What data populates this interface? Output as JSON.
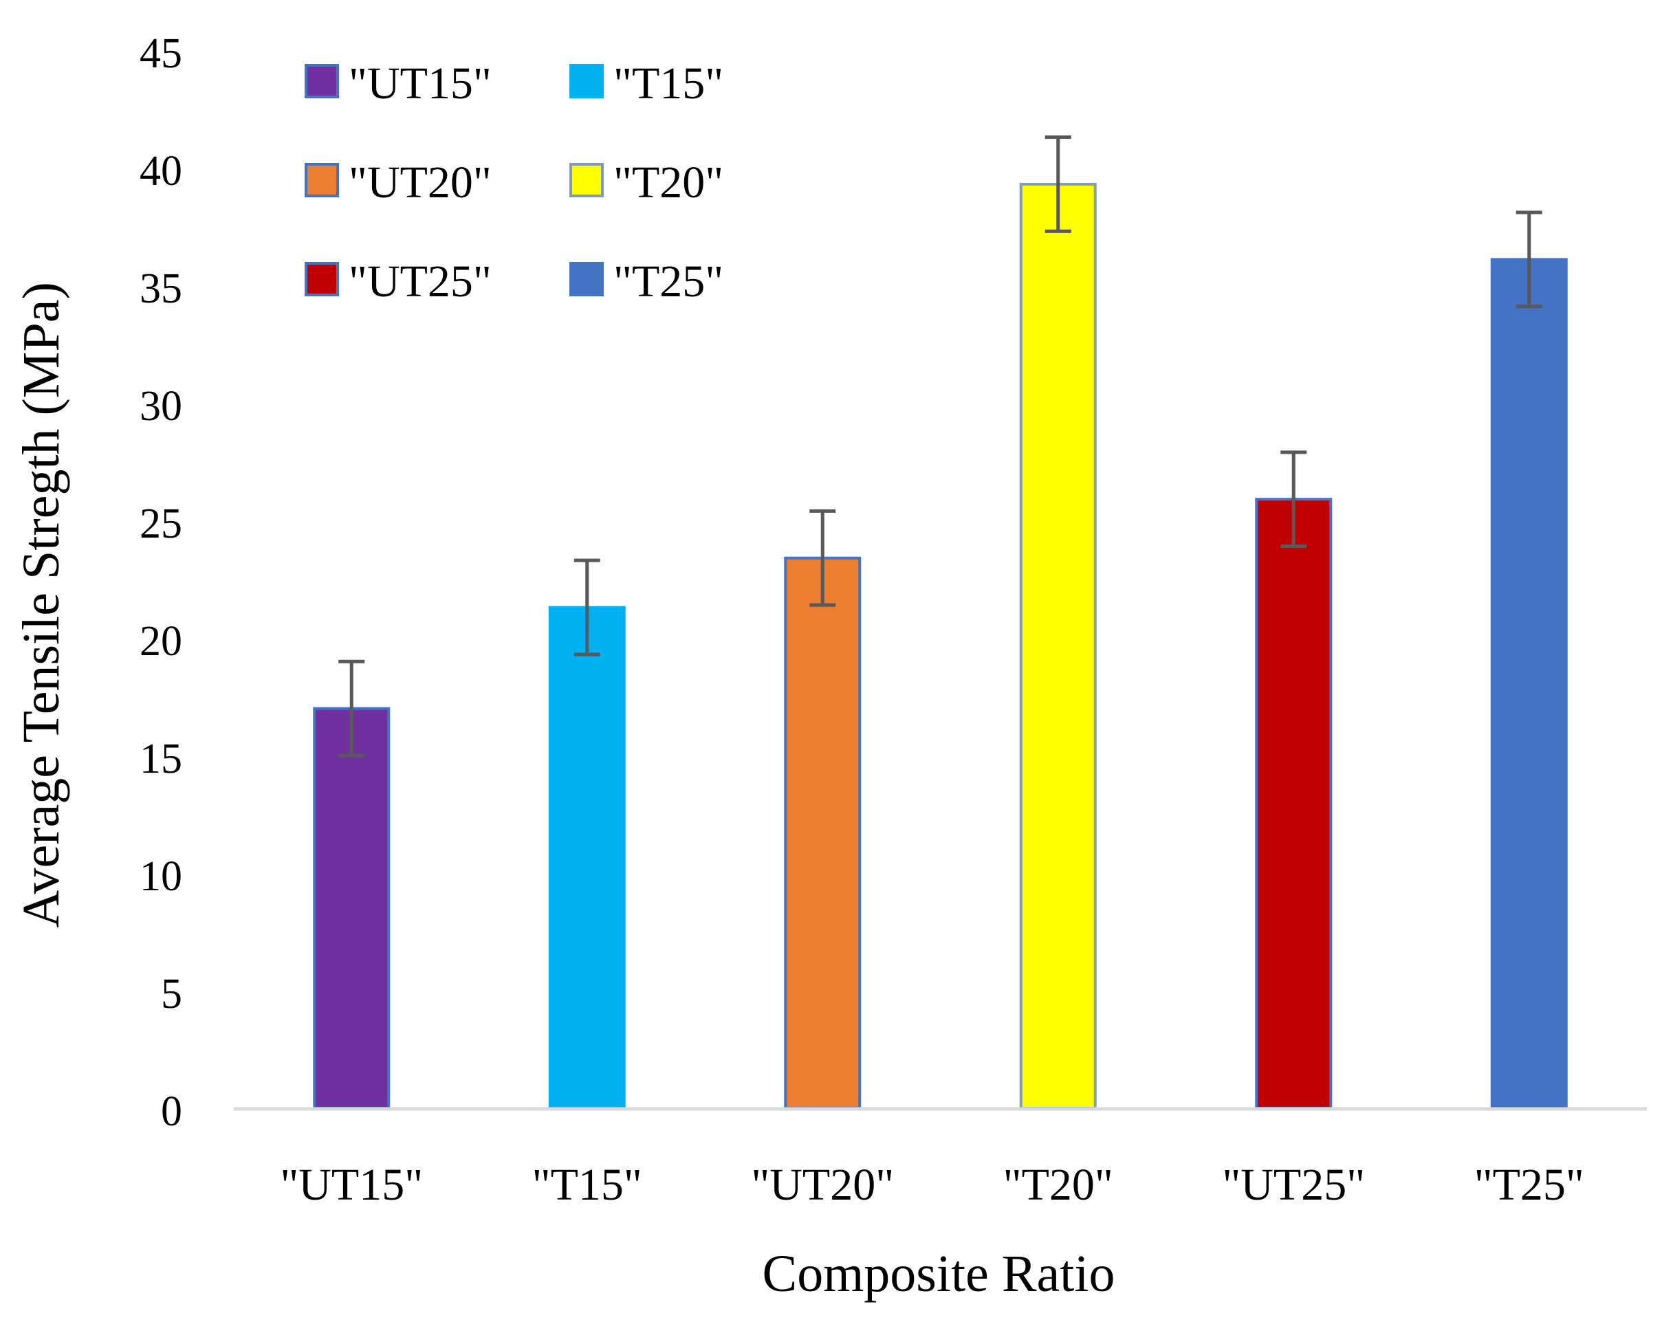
{
  "chart_data": {
    "type": "bar",
    "title": "",
    "xlabel": "Composite Ratio",
    "ylabel": "Average Tensile Stregth (MPa)",
    "ylim": [
      0,
      45
    ],
    "yticks": [
      0,
      5,
      10,
      15,
      20,
      25,
      30,
      35,
      40,
      45
    ],
    "grid": false,
    "legend_position": "top-left",
    "categories": [
      "\"UT15\"",
      "\"T15\"",
      "\"UT20\"",
      "\"T20\"",
      "\"UT25\"",
      "\"T25\""
    ],
    "values": [
      17,
      21.3,
      23.4,
      39.3,
      25.9,
      36.1
    ],
    "errors": [
      2,
      2,
      2,
      2,
      2,
      2
    ],
    "colors": [
      "#7030A0",
      "#00B0F0",
      "#ED7D31",
      "#FFFF00",
      "#C00000",
      "#4472C4"
    ],
    "border_colors": [
      "#4472C4",
      "#00B0F0",
      "#4472C4",
      "#7F9DB9",
      "#4472C4",
      "#4472C4"
    ],
    "error_bar_color": "#595959",
    "axis_color": "#D9D9D9",
    "legend": [
      {
        "label": "\"UT15\"",
        "color": "#7030A0",
        "border": "#4472C4"
      },
      {
        "label": "\"T15\"",
        "color": "#00B0F0",
        "border": "#00B0F0"
      },
      {
        "label": "\"UT20\"",
        "color": "#ED7D31",
        "border": "#4472C4"
      },
      {
        "label": "\"T20\"",
        "color": "#FFFF00",
        "border": "#7F9DB9"
      },
      {
        "label": "\"UT25\"",
        "color": "#C00000",
        "border": "#4472C4"
      },
      {
        "label": "\"T25\"",
        "color": "#4472C4",
        "border": "#4472C4"
      }
    ]
  }
}
